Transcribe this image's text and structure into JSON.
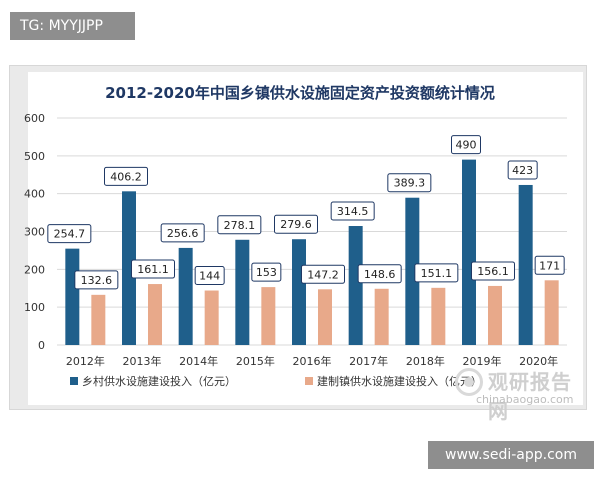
{
  "overlay": {
    "top_tag": "TG: MYYJJPP",
    "bottom_tag": "www.sedi-app.com",
    "watermark_cn": "观研报告网",
    "watermark_en": "chinabaogao.com"
  },
  "colors": {
    "series_1": "#1f5f8b",
    "series_2": "#e8a98a",
    "gridline": "#d9d9d9",
    "title": "#1f3864"
  },
  "chart_data": {
    "type": "bar",
    "title": "2012-2020年中国乡镇供水设施固定资产投资额统计情况",
    "categories": [
      "2012年",
      "2013年",
      "2014年",
      "2015年",
      "2016年",
      "2017年",
      "2018年",
      "2019年",
      "2020年"
    ],
    "series": [
      {
        "name": "乡村供水设施建设投入（亿元）",
        "values": [
          254.7,
          406.2,
          256.6,
          278.1,
          279.6,
          314.5,
          389.3,
          490,
          423
        ]
      },
      {
        "name": "建制镇供水设施建设投入（亿元）",
        "values": [
          132.6,
          161.1,
          144,
          153,
          147.2,
          148.6,
          151.1,
          156.1,
          171
        ]
      }
    ],
    "ylim": [
      0,
      600
    ],
    "yticks": [
      0,
      100,
      200,
      300,
      400,
      500,
      600
    ],
    "grid": true,
    "legend_position": "bottom"
  }
}
